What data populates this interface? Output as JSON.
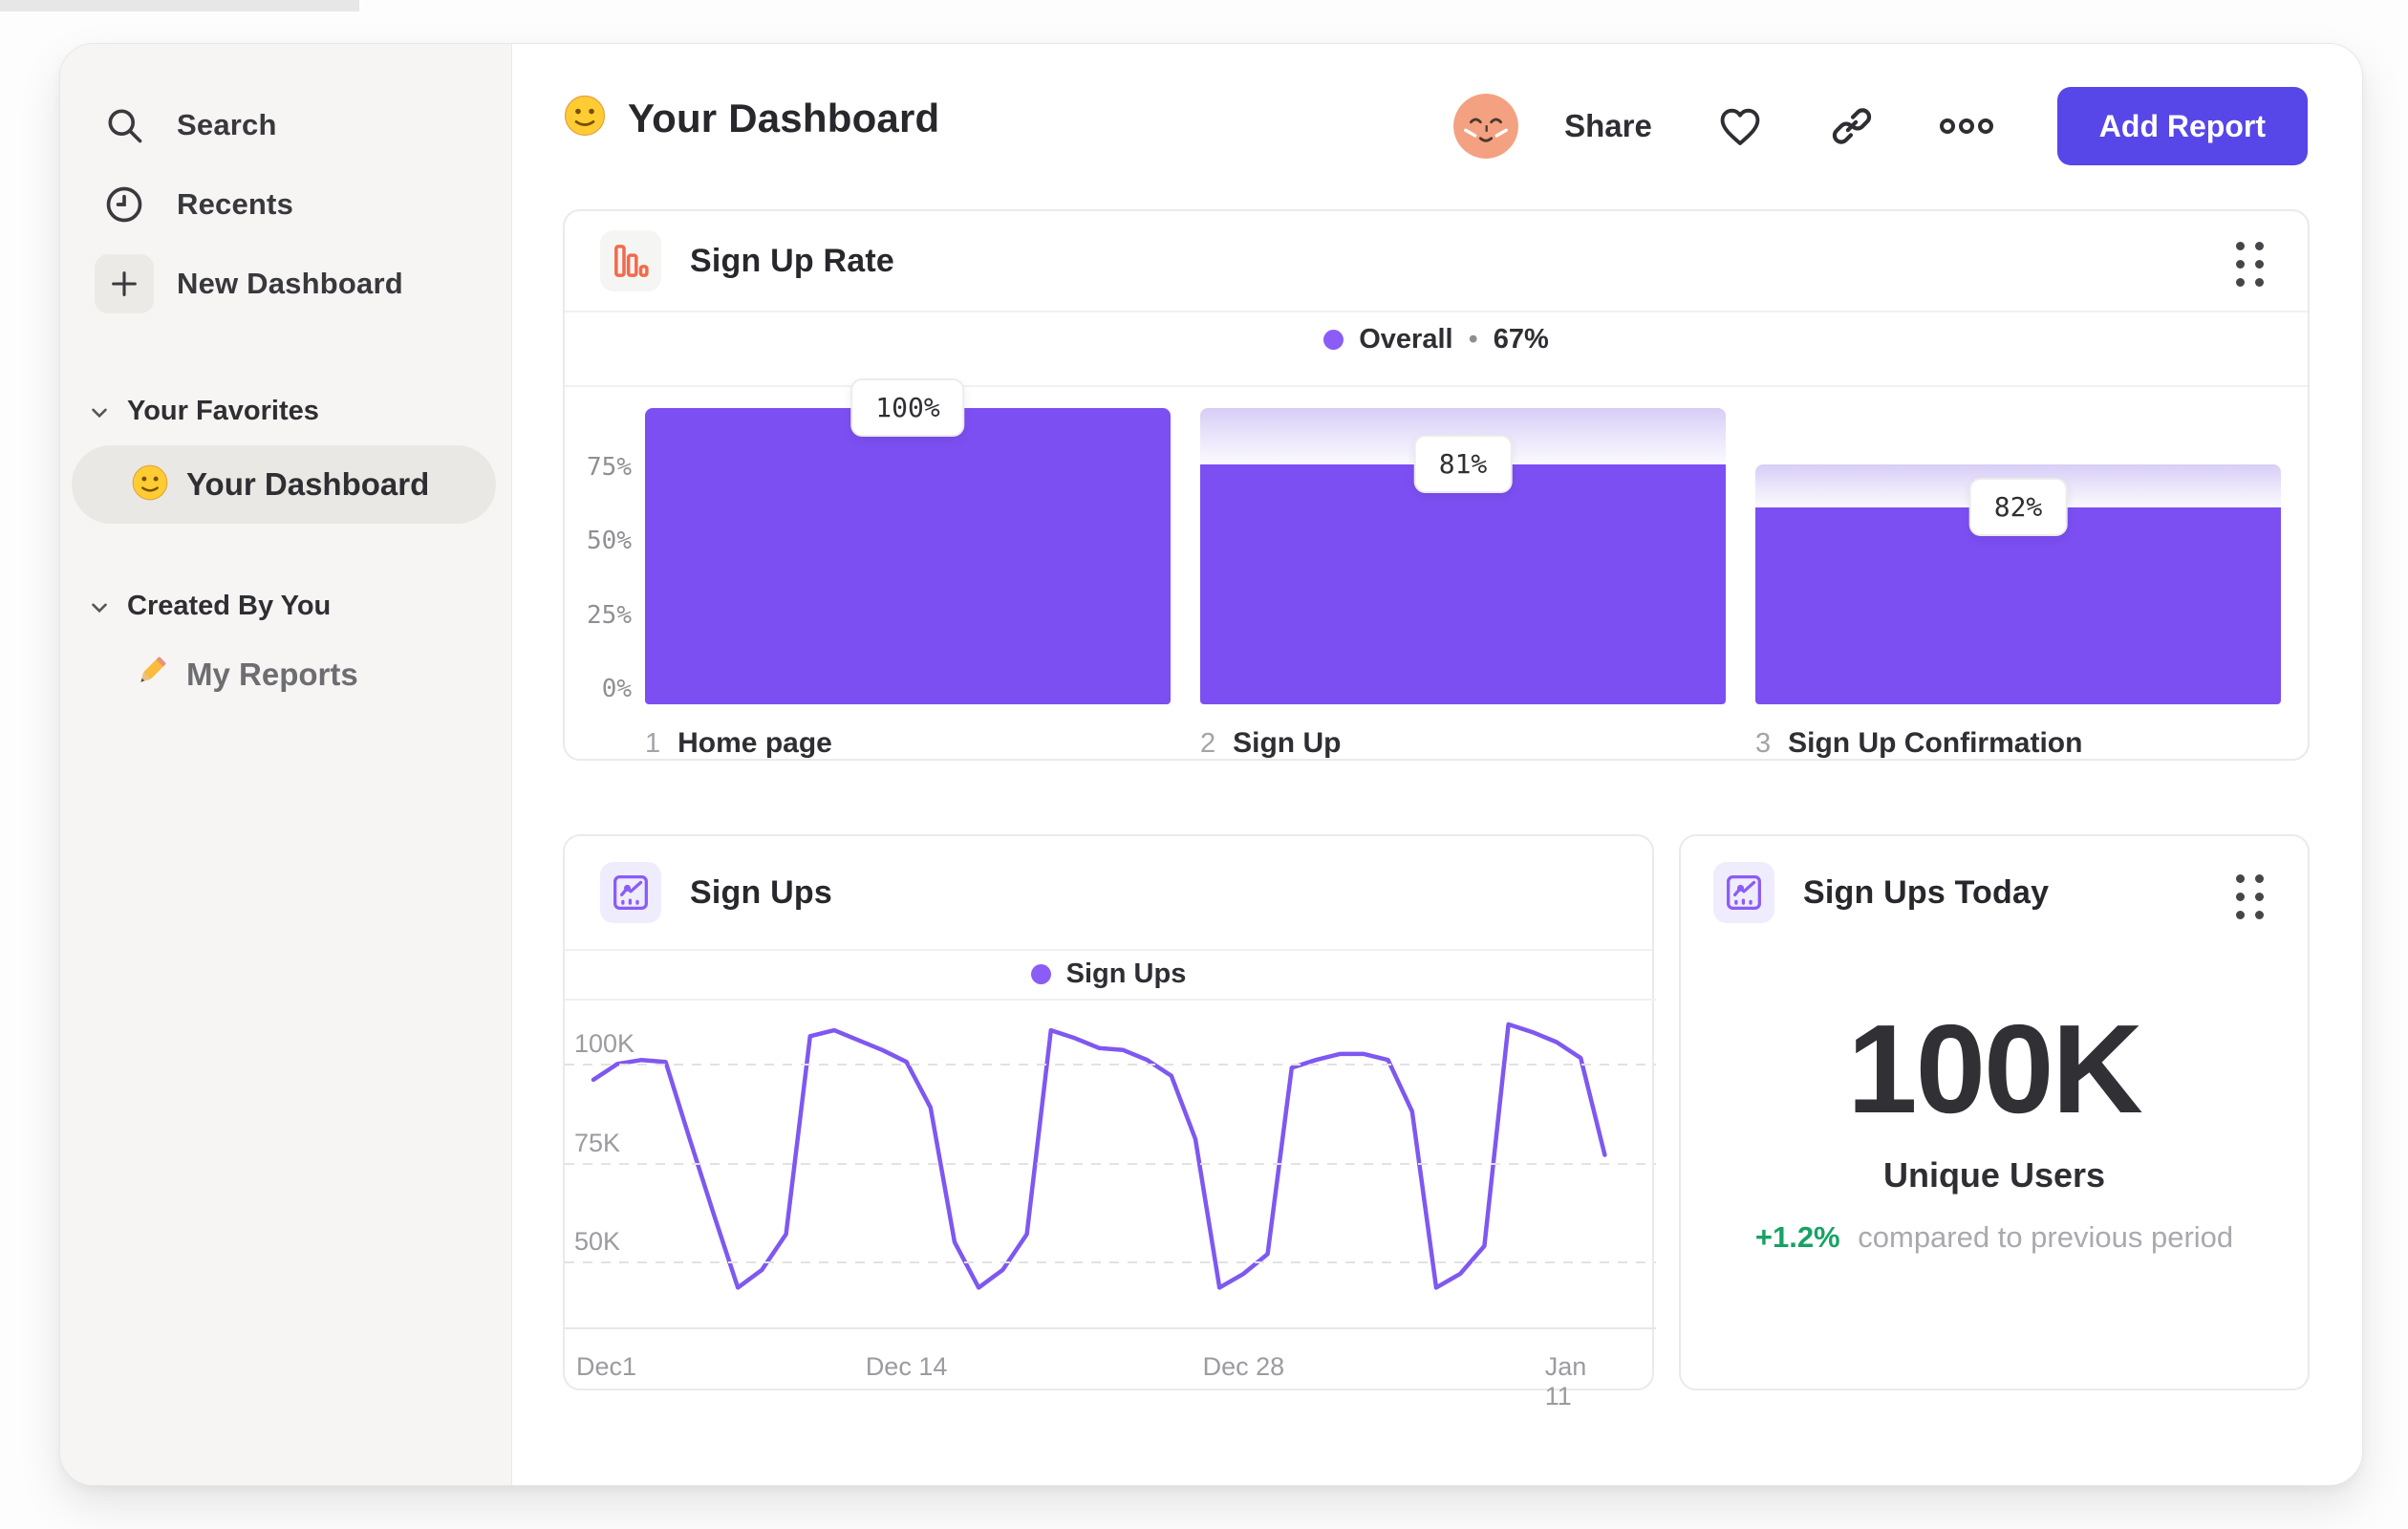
{
  "colors": {
    "accent_button": "#5746E8",
    "funnel_bar": "#7C4FF2",
    "line_stroke": "#7E58F0",
    "legend_dot": "#8B5CF6",
    "delta_green": "#17A265",
    "funnel_icon_orange": "#F26A4B",
    "chart_icon_purple": "#8B5CF6"
  },
  "sidebar": {
    "nav": [
      {
        "icon": "search-icon",
        "label": "Search"
      },
      {
        "icon": "clock-icon",
        "label": "Recents"
      },
      {
        "icon": "plus-icon",
        "label": "New Dashboard"
      }
    ],
    "sections": [
      {
        "label": "Your Favorites",
        "items": [
          {
            "emoji": "slightly-smiling-face",
            "label": "Your Dashboard",
            "selected": true
          }
        ]
      },
      {
        "label": "Created By You",
        "items": [
          {
            "emoji": "pencil",
            "label": "My Reports",
            "selected": false
          }
        ]
      }
    ]
  },
  "header": {
    "emoji": "slightly-smiling-face",
    "title": "Your Dashboard",
    "avatar": "relieved-face-avatar",
    "share_label": "Share",
    "icons": [
      "heart-icon",
      "link-icon",
      "ellipsis-icon"
    ],
    "add_report_label": "Add Report"
  },
  "funnel_card": {
    "title": "Sign Up Rate",
    "icon": "bar-chart-icon",
    "legend_label": "Overall",
    "legend_separator": "•",
    "legend_value": "67%"
  },
  "line_card": {
    "title": "Sign Ups",
    "icon": "line-chart-icon",
    "legend_label": "Sign Ups"
  },
  "kpi_card": {
    "title": "Sign Ups Today",
    "icon": "line-chart-icon",
    "value": "100K",
    "unit_label": "Unique Users",
    "delta": "+1.2%",
    "delta_description": "compared to previous period"
  },
  "chart_data": [
    {
      "type": "bar",
      "subtype": "funnel",
      "title": "Sign Up Rate",
      "legend": {
        "label": "Overall",
        "value": "67%",
        "position": "top-center"
      },
      "ylabel": "",
      "xlabel": "",
      "ylim": [
        0,
        100
      ],
      "y_ticks": [
        {
          "label": "75%",
          "value": 75
        },
        {
          "label": "50%",
          "value": 50
        },
        {
          "label": "25%",
          "value": 25
        },
        {
          "label": "0%",
          "value": 0
        }
      ],
      "steps": [
        {
          "number": "1",
          "category": "Home page",
          "label": "100%",
          "pct_of_previous": 100,
          "pct_overall": 100
        },
        {
          "number": "2",
          "category": "Sign Up",
          "label": "81%",
          "pct_of_previous": 81,
          "pct_overall": 81
        },
        {
          "number": "3",
          "category": "Sign Up Confirmation",
          "label": "82%",
          "pct_of_previous": 82,
          "pct_overall": 66.4
        }
      ],
      "bar_color": "#7C4FF2",
      "grid": false
    },
    {
      "type": "line",
      "title": "Sign Ups",
      "legend": {
        "label": "Sign Ups",
        "position": "top-center"
      },
      "x_unit": "day",
      "x_ticks": [
        {
          "label": "Dec1",
          "day": 0
        },
        {
          "label": "Dec 14",
          "day": 13
        },
        {
          "label": "Dec 28",
          "day": 27
        },
        {
          "label": "Jan 11",
          "day": 41
        }
      ],
      "y_ticks": [
        {
          "label": "100K",
          "value": 100
        },
        {
          "label": "75K",
          "value": 75
        },
        {
          "label": "50K",
          "value": 50
        }
      ],
      "ylim_thousands": [
        32.5,
        116
      ],
      "grid": "dashed-horizontal",
      "line_color": "#7E58F0",
      "values_thousands": [
        96,
        100,
        101,
        100.5,
        81,
        62,
        43.5,
        48,
        57,
        107,
        108.5,
        106,
        103.5,
        100.5,
        89,
        55,
        43.5,
        48,
        57,
        108.5,
        106.5,
        104,
        103.5,
        101,
        97,
        81,
        43.5,
        47,
        52,
        99,
        101,
        102.5,
        102.5,
        101,
        88,
        43.5,
        47,
        54,
        110,
        108,
        105.5,
        101.5,
        77
      ]
    }
  ]
}
